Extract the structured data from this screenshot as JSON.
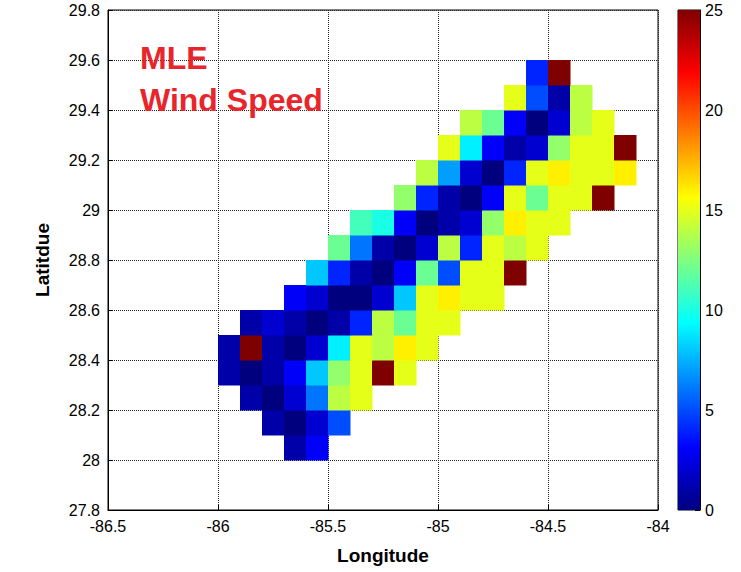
{
  "chart_data": {
    "type": "heatmap",
    "annotation": [
      "MLE",
      "Wind Speed"
    ],
    "x_label": "Longitude",
    "y_label": "Latitdue",
    "xlim": [
      -86.5,
      -84
    ],
    "xticks": [
      -86.5,
      -86,
      -85.5,
      -85,
      -84.5,
      -84
    ],
    "ylim": [
      27.8,
      29.8
    ],
    "yticks": [
      27.8,
      28,
      28.2,
      28.4,
      28.6,
      28.8,
      29,
      29.2,
      29.4,
      29.6,
      29.8
    ],
    "grid": true,
    "colorbar": {
      "range": [
        0,
        25
      ],
      "ticks": [
        0,
        5,
        10,
        15,
        20,
        25
      ]
    },
    "cells": [
      [
        -85.65,
        28.05,
        1
      ],
      [
        -85.55,
        28.05,
        3
      ],
      [
        -85.75,
        28.15,
        1
      ],
      [
        -85.65,
        28.15,
        0
      ],
      [
        -85.55,
        28.15,
        2
      ],
      [
        -85.45,
        28.15,
        5
      ],
      [
        -85.85,
        28.25,
        1
      ],
      [
        -85.75,
        28.25,
        0
      ],
      [
        -85.65,
        28.25,
        2
      ],
      [
        -85.55,
        28.25,
        6
      ],
      [
        -85.45,
        28.25,
        14
      ],
      [
        -85.35,
        28.25,
        15
      ],
      [
        -85.95,
        28.35,
        1
      ],
      [
        -85.85,
        28.35,
        0
      ],
      [
        -85.75,
        28.35,
        1
      ],
      [
        -85.65,
        28.35,
        3
      ],
      [
        -85.55,
        28.35,
        8
      ],
      [
        -85.45,
        28.35,
        13
      ],
      [
        -85.35,
        28.35,
        15
      ],
      [
        -85.25,
        28.35,
        25
      ],
      [
        -85.15,
        28.35,
        15
      ],
      [
        -85.95,
        28.45,
        1
      ],
      [
        -85.85,
        28.45,
        25
      ],
      [
        -85.75,
        28.45,
        1
      ],
      [
        -85.65,
        28.45,
        0
      ],
      [
        -85.55,
        28.45,
        2
      ],
      [
        -85.45,
        28.45,
        9
      ],
      [
        -85.35,
        28.45,
        15
      ],
      [
        -85.25,
        28.45,
        14
      ],
      [
        -85.15,
        28.45,
        16
      ],
      [
        -85.05,
        28.45,
        15
      ],
      [
        -85.85,
        28.55,
        1
      ],
      [
        -85.75,
        28.55,
        2
      ],
      [
        -85.65,
        28.55,
        1
      ],
      [
        -85.55,
        28.55,
        0
      ],
      [
        -85.45,
        28.55,
        1
      ],
      [
        -85.35,
        28.55,
        4
      ],
      [
        -85.25,
        28.55,
        14
      ],
      [
        -85.15,
        28.55,
        12
      ],
      [
        -85.05,
        28.55,
        15
      ],
      [
        -84.95,
        28.55,
        15
      ],
      [
        -85.65,
        28.65,
        3
      ],
      [
        -85.55,
        28.65,
        2
      ],
      [
        -85.45,
        28.65,
        0
      ],
      [
        -85.35,
        28.65,
        0
      ],
      [
        -85.25,
        28.65,
        2
      ],
      [
        -85.15,
        28.65,
        8
      ],
      [
        -85.05,
        28.65,
        15
      ],
      [
        -84.95,
        28.65,
        16
      ],
      [
        -84.85,
        28.65,
        15
      ],
      [
        -84.75,
        28.65,
        15
      ],
      [
        -85.55,
        28.75,
        8
      ],
      [
        -85.45,
        28.75,
        4
      ],
      [
        -85.35,
        28.75,
        1
      ],
      [
        -85.25,
        28.75,
        0
      ],
      [
        -85.15,
        28.75,
        3
      ],
      [
        -85.05,
        28.75,
        12
      ],
      [
        -84.95,
        28.75,
        5
      ],
      [
        -84.85,
        28.75,
        15
      ],
      [
        -84.75,
        28.75,
        15
      ],
      [
        -84.65,
        28.75,
        25
      ],
      [
        -85.45,
        28.85,
        12
      ],
      [
        -85.35,
        28.85,
        6
      ],
      [
        -85.25,
        28.85,
        1
      ],
      [
        -85.15,
        28.85,
        0
      ],
      [
        -85.05,
        28.85,
        2
      ],
      [
        -84.95,
        28.85,
        14
      ],
      [
        -84.85,
        28.85,
        4
      ],
      [
        -84.75,
        28.85,
        15
      ],
      [
        -84.65,
        28.85,
        14
      ],
      [
        -84.55,
        28.85,
        15
      ],
      [
        -85.35,
        28.95,
        11
      ],
      [
        -85.25,
        28.95,
        10
      ],
      [
        -85.15,
        28.95,
        3
      ],
      [
        -85.05,
        28.95,
        0
      ],
      [
        -84.95,
        28.95,
        1
      ],
      [
        -84.85,
        28.95,
        2
      ],
      [
        -84.75,
        28.95,
        13
      ],
      [
        -84.65,
        28.95,
        16
      ],
      [
        -84.55,
        28.95,
        15
      ],
      [
        -84.45,
        28.95,
        15
      ],
      [
        -85.15,
        29.05,
        13
      ],
      [
        -85.05,
        29.05,
        4
      ],
      [
        -84.95,
        29.05,
        1
      ],
      [
        -84.85,
        29.05,
        0
      ],
      [
        -84.75,
        29.05,
        3
      ],
      [
        -84.65,
        29.05,
        15
      ],
      [
        -84.55,
        29.05,
        12
      ],
      [
        -84.45,
        29.05,
        15
      ],
      [
        -84.35,
        29.05,
        15
      ],
      [
        -84.25,
        29.05,
        25
      ],
      [
        -85.05,
        29.15,
        14
      ],
      [
        -84.95,
        29.15,
        7
      ],
      [
        -84.85,
        29.15,
        2
      ],
      [
        -84.75,
        29.15,
        0
      ],
      [
        -84.65,
        29.15,
        4
      ],
      [
        -84.55,
        29.15,
        15
      ],
      [
        -84.45,
        29.15,
        16
      ],
      [
        -84.35,
        29.15,
        15
      ],
      [
        -84.25,
        29.15,
        15
      ],
      [
        -84.15,
        29.15,
        16
      ],
      [
        -84.95,
        29.25,
        15
      ],
      [
        -84.85,
        29.25,
        9
      ],
      [
        -84.75,
        29.25,
        3
      ],
      [
        -84.65,
        29.25,
        1
      ],
      [
        -84.55,
        29.25,
        2
      ],
      [
        -84.45,
        29.25,
        13
      ],
      [
        -84.35,
        29.25,
        15
      ],
      [
        -84.25,
        29.25,
        15
      ],
      [
        -84.15,
        29.25,
        25
      ],
      [
        -84.85,
        29.35,
        14
      ],
      [
        -84.75,
        29.35,
        12
      ],
      [
        -84.65,
        29.35,
        3
      ],
      [
        -84.55,
        29.35,
        0
      ],
      [
        -84.45,
        29.35,
        2
      ],
      [
        -84.35,
        29.35,
        14
      ],
      [
        -84.25,
        29.35,
        15
      ],
      [
        -84.65,
        29.45,
        15
      ],
      [
        -84.55,
        29.45,
        5
      ],
      [
        -84.45,
        29.45,
        1
      ],
      [
        -84.35,
        29.45,
        14
      ],
      [
        -84.55,
        29.55,
        4
      ],
      [
        -84.45,
        29.55,
        25
      ]
    ]
  }
}
